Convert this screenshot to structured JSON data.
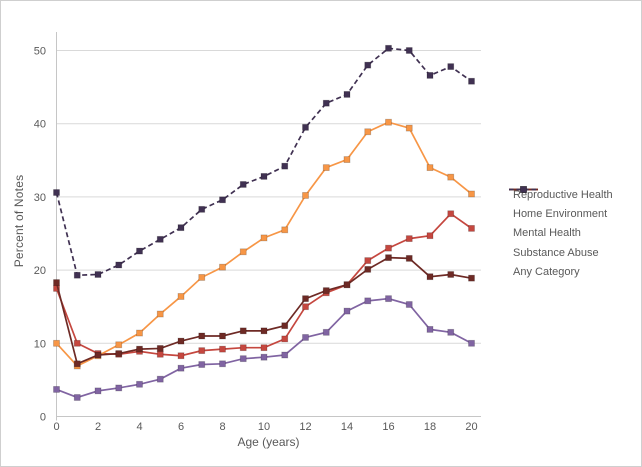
{
  "chart_data": {
    "type": "line",
    "title": "",
    "xlabel": "Age (years)",
    "ylabel": "Percent of Notes",
    "xlim": [
      0,
      20
    ],
    "ylim": [
      0,
      55
    ],
    "xticks": [
      0,
      2,
      4,
      6,
      8,
      10,
      12,
      14,
      16,
      18,
      20
    ],
    "yticks": [
      0,
      10,
      20,
      30,
      40,
      50
    ],
    "grid": "horizontal",
    "legend_position": "right",
    "x": [
      0,
      1,
      2,
      3,
      4,
      5,
      6,
      7,
      8,
      9,
      10,
      11,
      12,
      13,
      14,
      15,
      16,
      17,
      18,
      19,
      20
    ],
    "series": [
      {
        "name": "Reproductive Health",
        "color": "#C5473F",
        "line": "solid",
        "marker": "square",
        "values": [
          17.5,
          10.0,
          8.6,
          8.5,
          8.9,
          8.5,
          8.3,
          9.0,
          9.2,
          9.4,
          9.4,
          10.6,
          15.0,
          16.9,
          18.0,
          21.3,
          23.0,
          24.3,
          24.7,
          27.7,
          25.7
        ]
      },
      {
        "name": "Home Environment",
        "color": "#8064A2",
        "line": "solid",
        "marker": "square",
        "values": [
          3.7,
          2.6,
          3.5,
          3.9,
          4.4,
          5.1,
          6.6,
          7.1,
          7.2,
          7.9,
          8.1,
          8.4,
          10.8,
          11.5,
          14.4,
          15.8,
          16.1,
          15.3,
          11.9,
          11.5,
          10.0
        ]
      },
      {
        "name": "Mental Health",
        "color": "#F79646",
        "line": "solid",
        "marker": "square",
        "values": [
          10.0,
          6.9,
          8.3,
          9.8,
          11.4,
          14.0,
          16.4,
          19.0,
          20.4,
          22.5,
          24.4,
          25.5,
          30.2,
          34.0,
          35.1,
          38.9,
          40.2,
          39.4,
          34.0,
          32.7,
          30.4
        ]
      },
      {
        "name": "Substance Abuse",
        "color": "#6E2A25",
        "line": "solid",
        "marker": "square",
        "values": [
          18.3,
          7.2,
          8.4,
          8.6,
          9.2,
          9.3,
          10.3,
          11.0,
          11.0,
          11.7,
          11.7,
          12.4,
          16.1,
          17.2,
          18.0,
          20.1,
          21.7,
          21.6,
          19.1,
          19.4,
          18.9
        ]
      },
      {
        "name": "Any Category",
        "color": "#403152",
        "line": "dashed",
        "marker": "square",
        "values": [
          30.6,
          19.3,
          19.4,
          20.7,
          22.6,
          24.2,
          25.8,
          28.3,
          29.6,
          31.7,
          32.8,
          34.2,
          39.5,
          42.8,
          44.0,
          48.0,
          50.3,
          50.0,
          46.6,
          47.8,
          45.8
        ]
      }
    ]
  },
  "colors": {
    "gridline": "#D9D9D9",
    "axis_line": "#C6C6C6",
    "axis_text": "#595959",
    "background": "#FFFFFF"
  }
}
